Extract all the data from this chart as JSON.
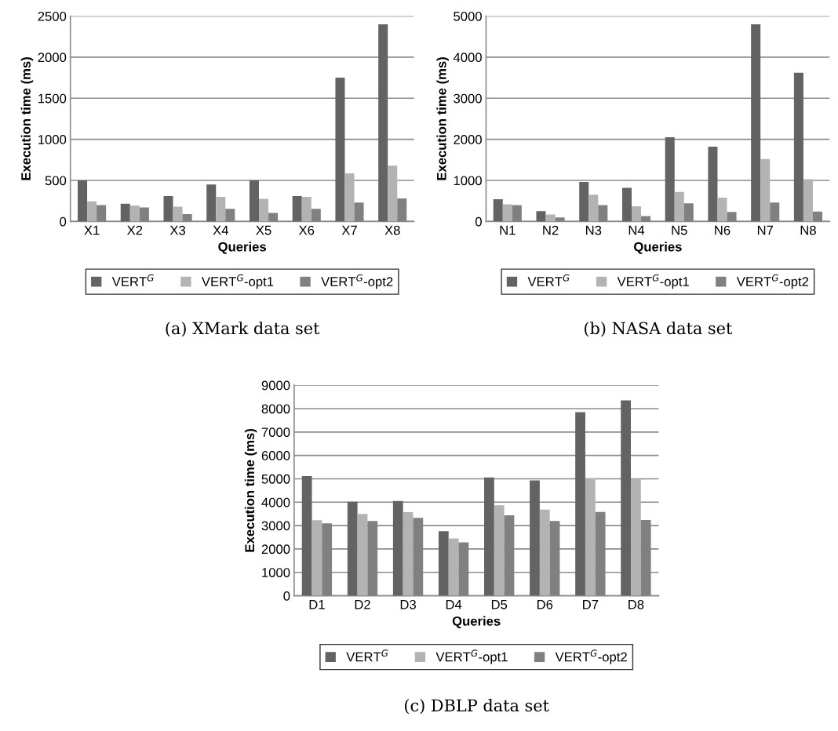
{
  "chart_data": [
    {
      "type": "bar",
      "title": "(a) XMark data set",
      "xlabel": "Queries",
      "ylabel": "Execution time (ms)",
      "categories": [
        "X1",
        "X2",
        "X3",
        "X4",
        "X5",
        "X6",
        "X7",
        "X8"
      ],
      "ylim": [
        0,
        2500
      ],
      "yticks": [
        0,
        500,
        1000,
        1500,
        2000,
        2500
      ],
      "grid": "y",
      "legend": "bottom",
      "series": [
        {
          "name": "VERT$^{G}$",
          "color": "#636363",
          "values": [
            500,
            215,
            310,
            450,
            500,
            310,
            1750,
            2400
          ]
        },
        {
          "name": "VERT$^{G}$-opt1",
          "color": "#b3b3b3",
          "values": [
            245,
            195,
            180,
            300,
            275,
            300,
            585,
            680
          ]
        },
        {
          "name": "VERT$^{G}$-opt2",
          "color": "#808080",
          "values": [
            200,
            170,
            90,
            155,
            105,
            155,
            230,
            280
          ]
        }
      ]
    },
    {
      "type": "bar",
      "title": "(b) NASA data set",
      "xlabel": "Queries",
      "ylabel": "Execution time (ms)",
      "categories": [
        "N1",
        "N2",
        "N3",
        "N4",
        "N5",
        "N6",
        "N7",
        "N8"
      ],
      "ylim": [
        0,
        5000
      ],
      "yticks": [
        0,
        1000,
        2000,
        3000,
        4000,
        5000
      ],
      "grid": "y",
      "legend": "bottom",
      "series": [
        {
          "name": "VERT$^{G}$",
          "color": "#636363",
          "values": [
            540,
            250,
            960,
            820,
            2050,
            1820,
            4800,
            3620
          ]
        },
        {
          "name": "VERT$^{G}$-opt1",
          "color": "#b3b3b3",
          "values": [
            420,
            170,
            650,
            370,
            720,
            580,
            1520,
            1030
          ]
        },
        {
          "name": "VERT$^{G}$-opt2",
          "color": "#808080",
          "values": [
            400,
            100,
            400,
            130,
            440,
            230,
            460,
            240
          ]
        }
      ]
    },
    {
      "type": "bar",
      "title": "(c) DBLP data set",
      "xlabel": "Queries",
      "ylabel": "Execution time (ms)",
      "categories": [
        "D1",
        "D2",
        "D3",
        "D4",
        "D5",
        "D6",
        "D7",
        "D8"
      ],
      "ylim": [
        0,
        9000
      ],
      "yticks": [
        0,
        1000,
        2000,
        3000,
        4000,
        5000,
        6000,
        7000,
        8000,
        9000
      ],
      "grid": "y",
      "legend": "bottom",
      "series": [
        {
          "name": "VERT$^{G}$",
          "color": "#636363",
          "values": [
            5120,
            4020,
            4050,
            2760,
            5060,
            4930,
            7850,
            8350
          ]
        },
        {
          "name": "VERT$^{G}$-opt1",
          "color": "#b3b3b3",
          "values": [
            3230,
            3500,
            3570,
            2450,
            3870,
            3680,
            5020,
            5000
          ]
        },
        {
          "name": "VERT$^{G}$-opt2",
          "color": "#808080",
          "values": [
            3100,
            3200,
            3330,
            2280,
            3440,
            3200,
            3580,
            3240
          ]
        }
      ]
    }
  ]
}
